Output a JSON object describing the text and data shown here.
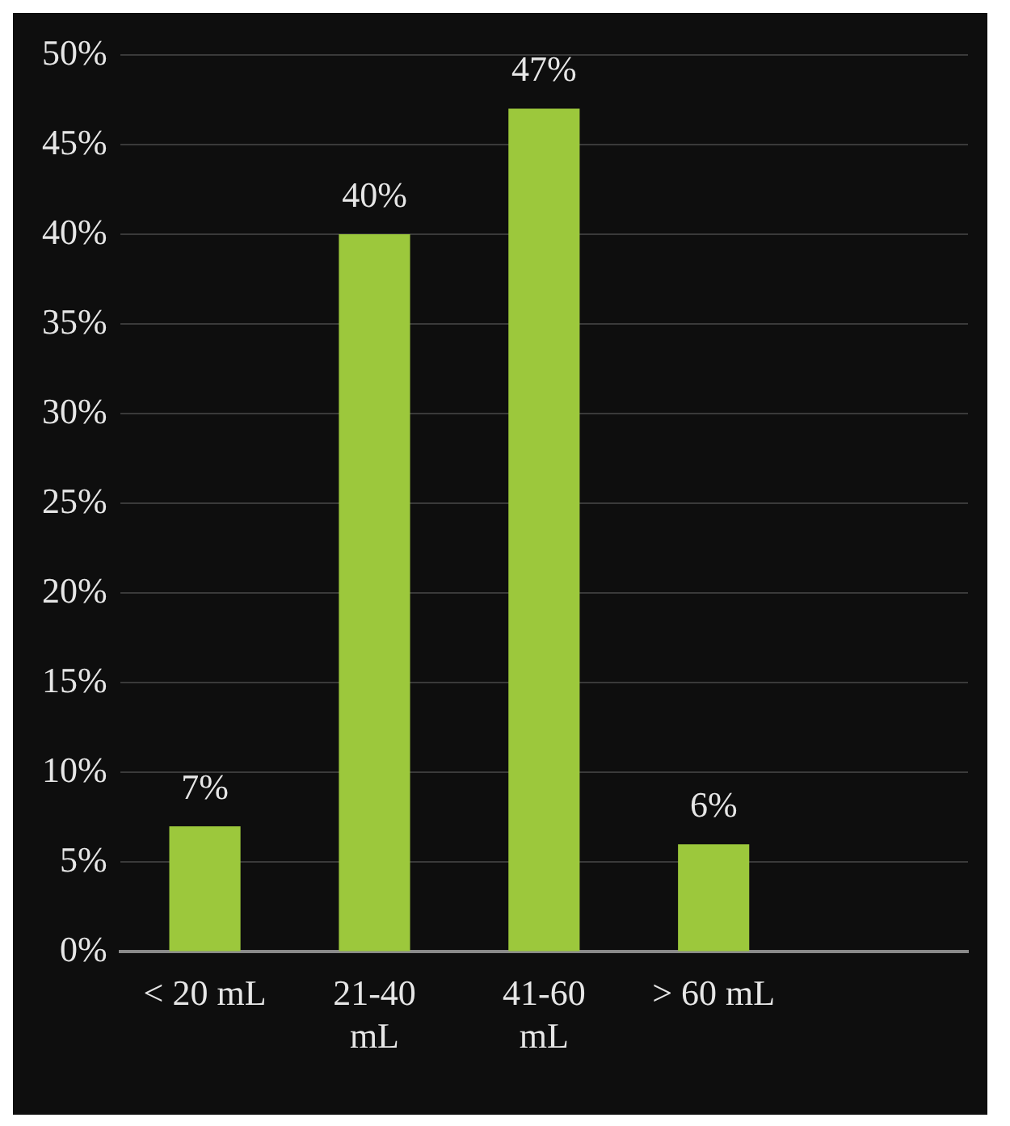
{
  "chart_data": {
    "type": "bar",
    "categories": [
      "< 20 mL",
      "21-40 mL",
      "41-60 mL",
      "> 60 mL",
      null
    ],
    "values": [
      7,
      40,
      47,
      6,
      null
    ],
    "color": "#9cc83c",
    "ylim": [
      0,
      50
    ],
    "yticks": [
      {
        "value": 0,
        "label": "0%"
      },
      {
        "value": 5,
        "label": "5%"
      },
      {
        "value": 10,
        "label": "10%"
      },
      {
        "value": 15,
        "label": "15%"
      },
      {
        "value": 20,
        "label": "20%"
      },
      {
        "value": 25,
        "label": "25%"
      },
      {
        "value": 30,
        "label": "30%"
      },
      {
        "value": 35,
        "label": "35%"
      },
      {
        "value": 40,
        "label": "40%"
      },
      {
        "value": 45,
        "label": "45%"
      },
      {
        "value": 50,
        "label": "50%"
      }
    ],
    "value_labels": [
      "7%",
      "40%",
      "47%",
      "6%",
      null
    ],
    "grid": "y",
    "legend": false
  }
}
